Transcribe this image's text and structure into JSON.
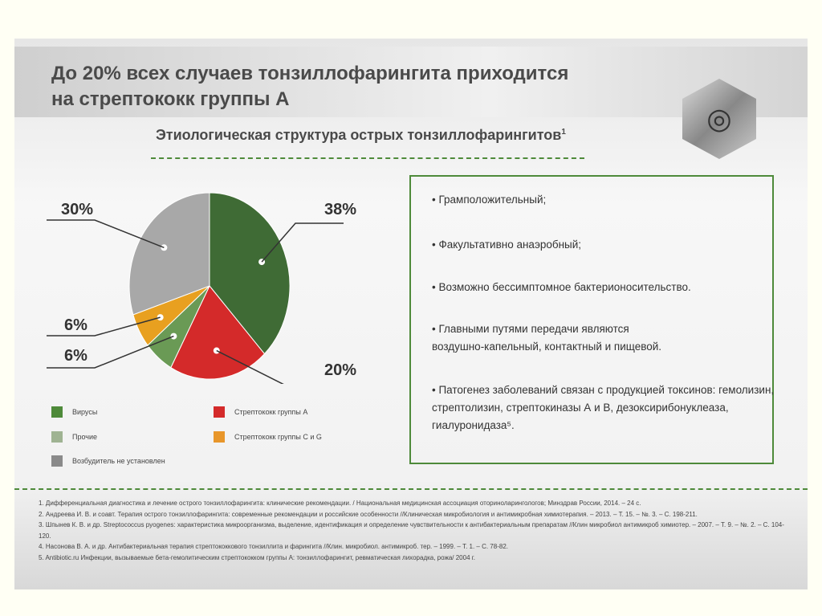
{
  "title": [
    "До 20% всех случаев тонзиллофарингита приходится",
    "на стрептококк группы А"
  ],
  "subtitle": "Этиологическая структура острых тонзиллофарингитов",
  "subtitle_sup": "1",
  "chart_data": {
    "type": "pie",
    "title": "Этиологическая структура острых тонзиллофарингитов",
    "slices": [
      {
        "name": "Вирусы",
        "value": 38,
        "label": "38%",
        "color": "#3f6b35"
      },
      {
        "name": "Стрептококк группы А",
        "value": 20,
        "label": "20%",
        "color": "#d42a2a"
      },
      {
        "name": "Прочие",
        "value": 6,
        "label": "6%",
        "color": "#6a9a55"
      },
      {
        "name": "Стрептококк группы С и G",
        "value": 6,
        "label": "6%",
        "color": "#e8a020"
      },
      {
        "name": "Возбудитель не установлен",
        "value": 30,
        "label": "30%",
        "color": "#a8a8a8"
      }
    ],
    "legend": [
      "Вирусы",
      "Прочие",
      "Возбудитель не установлен",
      "Стрептококк группы А",
      "Стрептококк группы С и G"
    ]
  },
  "bullets": [
    "• Грамположительный;",
    "• Факультативно анаэробный;",
    "• Возможно бессимптомное бактерионосительство.",
    "• Главными путями передачи являются воздушно-капельный, контактный и пищевой.",
    "• Патогенез заболеваний связан с продукцией токсинов: гемолизин, стрептолизин, стрептокиназы А и В, дезоксирибонуклеаза, гиалуронидаза⁵."
  ],
  "references": [
    "1. Дифференциальная диагностика и лечение острого тонзиллофарингита: клинические рекомендации. / Национальная медицинская ассоциация оториноларингологов; Минздрав России, 2014. – 24 с.",
    "2. Андреева И. В. и соавт. Терапия острого тонзиллофарингита: современные рекомендации и российские особенности //Клиническая микробиология и антимикробная химиотерапия. – 2013. – Т. 15. – №. 3. – С. 198-211.",
    "3. Шпынев К. В. и др. Streptococcus pyogenes: характеристика микроорганизма, выделение, идентификация и определение чувствительности к антибактериальным препаратам //Клин микробиол антимикроб химиотер. – 2007. – Т. 9. – №. 2. – С. 104-120.",
    "4. Насонова В. А. и др. Антибактериальная терапия стрептококкового тонзиллита и фарингита //Клин. микробиол. антимикроб. тер. – 1999. – Т. 1. – С. 78-82.",
    "5. Antibiotic.ru Инфекции, вызываемые бета-гемолитическим стрептококком группы А: тонзиллофарингит, ревматическая лихорадка, рожа/ 2004 г."
  ]
}
